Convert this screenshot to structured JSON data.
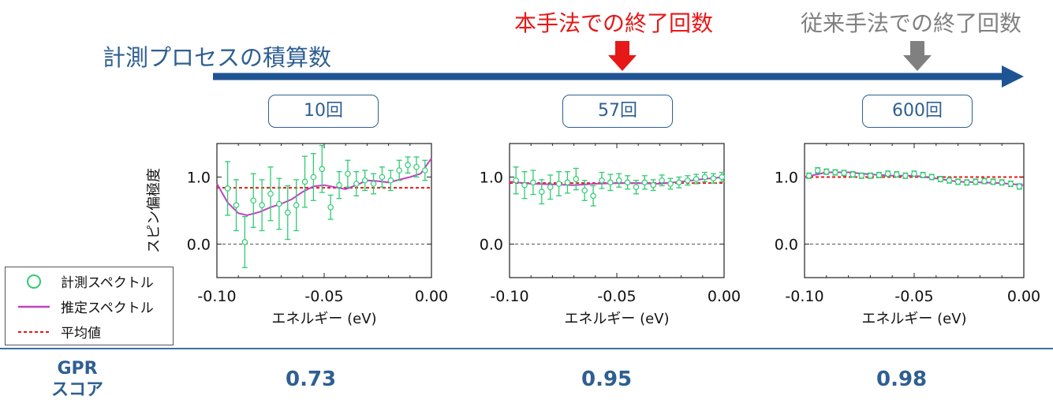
{
  "timeline": {
    "title": "計測プロセスの積算数",
    "proposed_marker": "本手法での終了回数",
    "conventional_marker": "従来手法での終了回数",
    "arrow_color": "#1f5493",
    "proposed_color": "#e61818",
    "conventional_color": "#808080"
  },
  "counts": [
    "10回",
    "57回",
    "600回"
  ],
  "scores": {
    "label_line1": "GPR",
    "label_line2": "スコア",
    "values": [
      "0.73",
      "0.95",
      "0.98"
    ]
  },
  "legend": {
    "measured": "計測スペクトル",
    "estimated": "推定スペクトル",
    "mean": "平均値"
  },
  "chart_data": [
    {
      "type": "scatter",
      "xlabel": "エネルギー (eV)",
      "ylabel": "スピン偏極度",
      "xlim": [
        -0.1,
        0.0
      ],
      "ylim": [
        -0.5,
        1.5
      ],
      "x_ticks": [
        "-0.10",
        "-0.05",
        "0.00"
      ],
      "y_ticks": [
        "0.0",
        "1.0"
      ],
      "measured": {
        "x": [
          -0.095,
          -0.091,
          -0.087,
          -0.083,
          -0.079,
          -0.075,
          -0.071,
          -0.067,
          -0.063,
          -0.059,
          -0.055,
          -0.051,
          -0.047,
          -0.043,
          -0.039,
          -0.035,
          -0.031,
          -0.027,
          -0.023,
          -0.019,
          -0.015,
          -0.011,
          -0.007,
          -0.003
        ],
        "y": [
          0.83,
          0.58,
          0.03,
          0.65,
          0.58,
          0.75,
          0.6,
          0.47,
          0.58,
          0.93,
          1.0,
          1.12,
          0.55,
          0.88,
          1.05,
          0.9,
          0.95,
          0.9,
          1.0,
          0.95,
          1.1,
          1.18,
          1.15,
          1.1
        ],
        "err": [
          0.4,
          0.38,
          0.38,
          0.4,
          0.38,
          0.4,
          0.38,
          0.4,
          0.38,
          0.38,
          0.35,
          0.35,
          0.18,
          0.2,
          0.2,
          0.18,
          0.15,
          0.15,
          0.15,
          0.15,
          0.15,
          0.12,
          0.15,
          0.15
        ]
      },
      "estimated": {
        "x": [
          -0.1,
          -0.095,
          -0.09,
          -0.086,
          -0.08,
          -0.075,
          -0.07,
          -0.065,
          -0.06,
          -0.055,
          -0.05,
          -0.045,
          -0.04,
          -0.035,
          -0.03,
          -0.025,
          -0.02,
          -0.015,
          -0.01,
          -0.005,
          0.0
        ],
        "y": [
          0.9,
          0.62,
          0.46,
          0.43,
          0.48,
          0.55,
          0.6,
          0.67,
          0.78,
          0.86,
          0.88,
          0.85,
          0.82,
          0.88,
          0.95,
          0.94,
          0.92,
          0.96,
          1.0,
          1.05,
          1.28
        ]
      },
      "mean": 0.84
    },
    {
      "type": "scatter",
      "xlabel": "エネルギー (eV)",
      "ylabel": "",
      "xlim": [
        -0.1,
        0.0
      ],
      "ylim": [
        -0.5,
        1.5
      ],
      "x_ticks": [
        "-0.10",
        "-0.05",
        "0.00"
      ],
      "y_ticks": [
        "0.0",
        "1.0"
      ],
      "measured": {
        "x": [
          -0.097,
          -0.093,
          -0.089,
          -0.085,
          -0.081,
          -0.077,
          -0.073,
          -0.069,
          -0.065,
          -0.061,
          -0.057,
          -0.053,
          -0.049,
          -0.045,
          -0.041,
          -0.037,
          -0.033,
          -0.029,
          -0.025,
          -0.021,
          -0.017,
          -0.013,
          -0.009,
          -0.005,
          -0.001
        ],
        "y": [
          0.95,
          0.88,
          0.92,
          0.78,
          0.85,
          0.9,
          0.92,
          0.97,
          0.8,
          0.72,
          0.95,
          0.92,
          0.95,
          0.92,
          0.85,
          0.92,
          0.88,
          0.95,
          0.9,
          0.92,
          0.95,
          0.97,
          1.0,
          0.98,
          1.0
        ],
        "err": [
          0.2,
          0.2,
          0.18,
          0.18,
          0.18,
          0.18,
          0.16,
          0.16,
          0.15,
          0.15,
          0.12,
          0.12,
          0.1,
          0.1,
          0.1,
          0.1,
          0.08,
          0.08,
          0.08,
          0.08,
          0.07,
          0.07,
          0.07,
          0.07,
          0.07
        ]
      },
      "estimated": {
        "x": [
          -0.1,
          -0.09,
          -0.08,
          -0.07,
          -0.06,
          -0.05,
          -0.04,
          -0.03,
          -0.02,
          -0.01,
          0.0
        ],
        "y": [
          0.93,
          0.9,
          0.89,
          0.88,
          0.9,
          0.91,
          0.91,
          0.9,
          0.93,
          0.97,
          1.0
        ]
      },
      "mean": 0.91
    },
    {
      "type": "scatter",
      "xlabel": "エネルギー (eV)",
      "ylabel": "",
      "xlim": [
        -0.1,
        0.0
      ],
      "ylim": [
        -0.5,
        1.5
      ],
      "x_ticks": [
        "-0.10",
        "-0.05",
        "0.00"
      ],
      "y_ticks": [
        "0.0",
        "1.0"
      ],
      "measured": {
        "x": [
          -0.098,
          -0.094,
          -0.09,
          -0.086,
          -0.082,
          -0.078,
          -0.074,
          -0.07,
          -0.066,
          -0.062,
          -0.058,
          -0.054,
          -0.05,
          -0.046,
          -0.042,
          -0.038,
          -0.034,
          -0.03,
          -0.026,
          -0.022,
          -0.018,
          -0.014,
          -0.01,
          -0.006,
          -0.002
        ],
        "y": [
          1.02,
          1.1,
          1.08,
          1.07,
          1.06,
          1.04,
          1.02,
          1.02,
          1.03,
          1.05,
          1.04,
          1.02,
          1.05,
          1.03,
          1.0,
          0.97,
          0.95,
          0.93,
          0.92,
          0.93,
          0.94,
          0.93,
          0.92,
          0.9,
          0.86
        ]
      },
      "estimated": {
        "x": [
          -0.1,
          -0.09,
          -0.08,
          -0.07,
          -0.06,
          -0.05,
          -0.04,
          -0.03,
          -0.02,
          -0.01,
          0.0
        ],
        "y": [
          1.0,
          1.07,
          1.07,
          1.04,
          1.02,
          1.02,
          0.98,
          0.93,
          0.92,
          0.91,
          0.88
        ]
      },
      "mean": 1.0
    }
  ]
}
